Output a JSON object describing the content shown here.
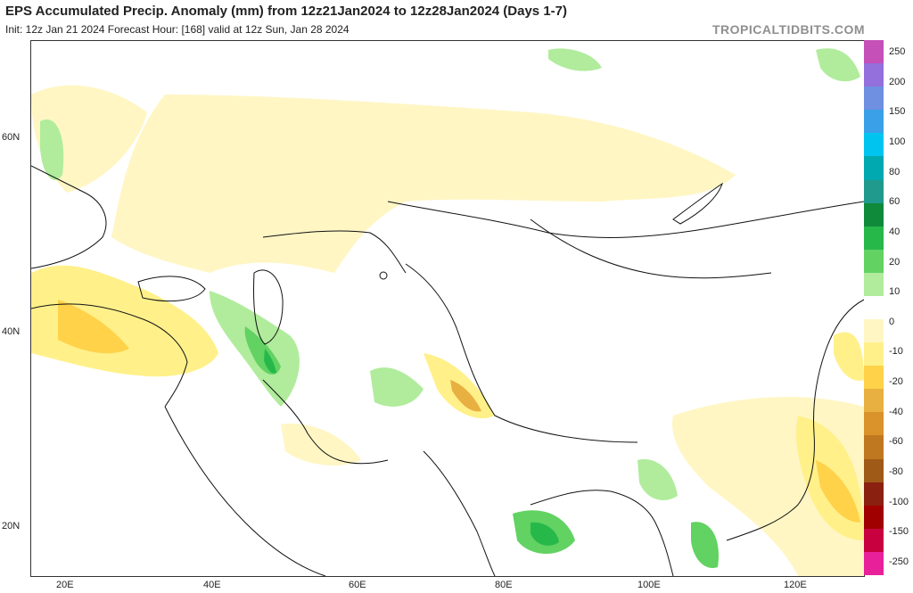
{
  "header": {
    "title": "EPS Accumulated Precip. Anomaly (mm) from 12z21Jan2024 to 12z28Jan2024 (Days 1-7)",
    "subtitle": "Init: 12z Jan 21 2024   Forecast Hour: [168]   valid at 12z Sun, Jan 28 2024",
    "brand": "TROPICALTIDBITS.COM"
  },
  "axes": {
    "lat_labels": [
      "60N",
      "40N",
      "20N"
    ],
    "lon_labels": [
      "20E",
      "40E",
      "60E",
      "80E",
      "100E",
      "120E"
    ]
  },
  "colorbar": {
    "labels": [
      "250",
      "200",
      "150",
      "100",
      "80",
      "60",
      "40",
      "20",
      "10",
      "0",
      "-10",
      "-20",
      "-40",
      "-60",
      "-80",
      "-100",
      "-150",
      "-250"
    ],
    "colors": [
      "#c450b8",
      "#9370db",
      "#6f8fe0",
      "#3aa0e8",
      "#00c4f0",
      "#00a8b0",
      "#1f9a8c",
      "#0f8a3a",
      "#27b84a",
      "#62d262",
      "#b0ec9c",
      "#ffffff",
      "#fff6c4",
      "#fff08a",
      "#ffd24a",
      "#e8b040",
      "#d9932a",
      "#c07820",
      "#a05a18",
      "#8a2010",
      "#a00000",
      "#c80040",
      "#e8209a"
    ]
  },
  "map": {
    "region": "Central and South Asia / Middle East",
    "lat_range": [
      15,
      68
    ],
    "lon_range": [
      15,
      130
    ]
  }
}
